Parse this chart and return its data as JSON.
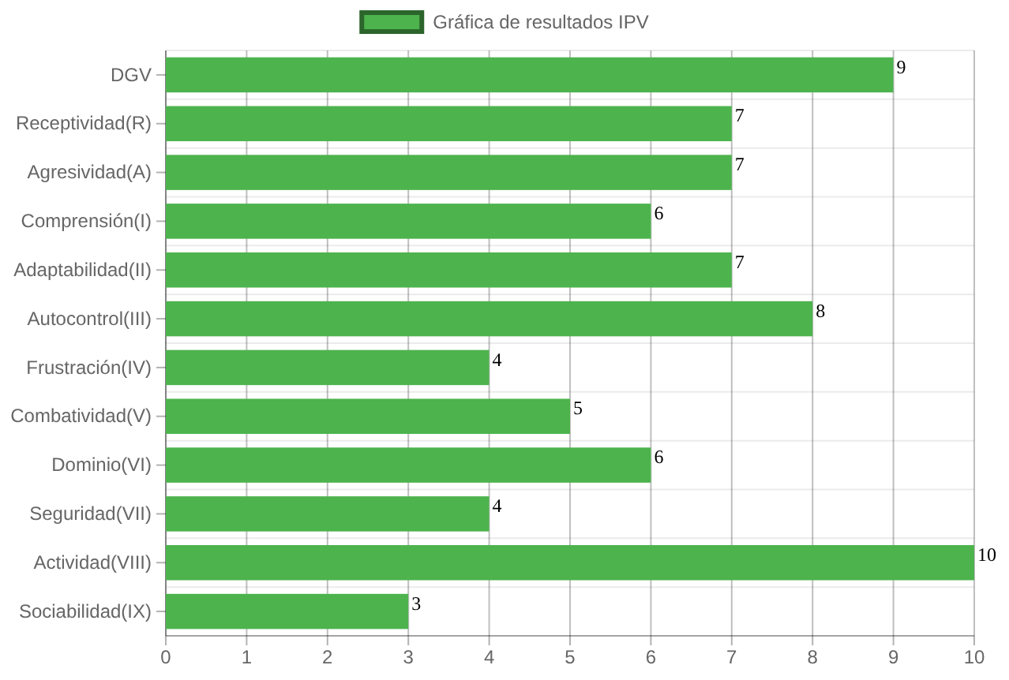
{
  "chart_data": {
    "type": "bar",
    "orientation": "horizontal",
    "categories": [
      "DGV",
      "Receptividad(R)",
      "Agresividad(A)",
      "Comprensión(I)",
      "Adaptabilidad(II)",
      "Autocontrol(III)",
      "Frustración(IV)",
      "Combatividad(V)",
      "Dominio(VI)",
      "Seguridad(VII)",
      "Actividad(VIII)",
      "Sociabilidad(IX)"
    ],
    "series": [
      {
        "name": "Gráfica de resultados IPV",
        "color": "#4db34d",
        "values": [
          9,
          7,
          7,
          6,
          7,
          8,
          4,
          5,
          6,
          4,
          10,
          3
        ]
      }
    ],
    "xlim": [
      0,
      10
    ],
    "xticks": [
      0,
      1,
      2,
      3,
      4,
      5,
      6,
      7,
      8,
      9,
      10
    ],
    "grid": true,
    "legend": "top",
    "data_labels": true
  }
}
